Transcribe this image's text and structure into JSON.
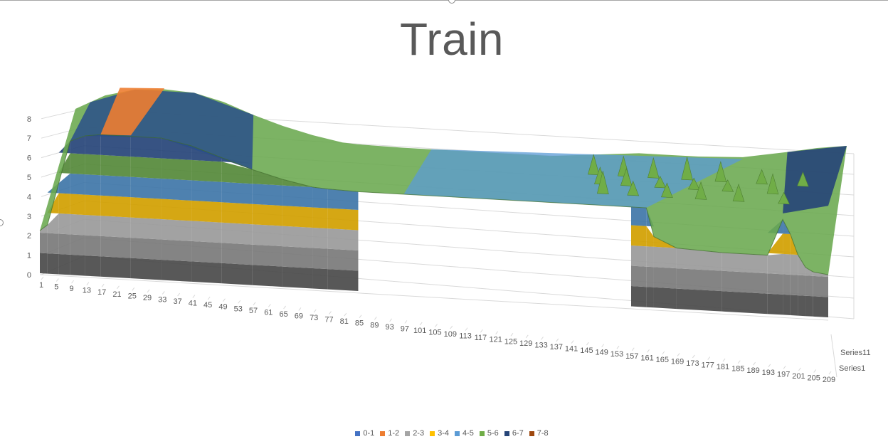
{
  "chart_data": {
    "type": "surface",
    "title": "Train",
    "z_axis": {
      "ticks": [
        "0",
        "1",
        "2",
        "3",
        "4",
        "5",
        "6",
        "7",
        "8"
      ],
      "range": [
        0,
        8
      ]
    },
    "x_axis": {
      "ticks": [
        "1",
        "5",
        "9",
        "13",
        "17",
        "21",
        "25",
        "29",
        "33",
        "37",
        "41",
        "45",
        "49",
        "53",
        "57",
        "61",
        "65",
        "69",
        "73",
        "77",
        "81",
        "85",
        "89",
        "93",
        "97",
        "101",
        "105",
        "109",
        "113",
        "117",
        "121",
        "125",
        "129",
        "133",
        "137",
        "141",
        "145",
        "149",
        "153",
        "157",
        "161",
        "165",
        "169",
        "173",
        "177",
        "181",
        "185",
        "189",
        "193",
        "197",
        "201",
        "205",
        "209"
      ]
    },
    "y_axis": {
      "ticks": [
        "Series1",
        "Series11"
      ]
    },
    "legend": {
      "position": "bottom",
      "entries": [
        {
          "label": "0-1",
          "color": "#4472c4"
        },
        {
          "label": "1-2",
          "color": "#ed7d31"
        },
        {
          "label": "2-3",
          "color": "#a5a5a5"
        },
        {
          "label": "3-4",
          "color": "#ffc000"
        },
        {
          "label": "4-5",
          "color": "#5b9bd5"
        },
        {
          "label": "5-6",
          "color": "#70ad47"
        },
        {
          "label": "6-7",
          "color": "#264478"
        },
        {
          "label": "7-8",
          "color": "#9e480e"
        }
      ]
    },
    "profile_front": {
      "x": [
        1,
        3,
        6,
        9,
        13,
        17,
        25,
        33,
        41,
        49,
        57,
        65,
        73,
        77,
        85,
        97,
        113,
        129,
        145,
        157,
        161,
        163,
        169,
        181,
        193,
        197,
        199,
        201,
        203,
        205,
        209
      ],
      "z": [
        2.1,
        2.4,
        4.5,
        6.6,
        6.9,
        7.0,
        7.0,
        7.0,
        6.7,
        6.2,
        5.7,
        5.3,
        5.0,
        4.95,
        4.9,
        4.9,
        4.9,
        4.9,
        4.9,
        4.9,
        4.9,
        3.5,
        3.0,
        2.9,
        2.9,
        4.7,
        4.0,
        3.0,
        2.4,
        2.2,
        2.1
      ]
    },
    "profile_back": {
      "x": [
        1,
        5,
        9,
        17,
        25,
        33,
        41,
        49,
        57,
        65,
        73,
        77,
        89,
        97,
        113,
        129,
        141,
        153,
        161,
        169,
        181,
        193,
        201,
        209
      ],
      "z": [
        6.0,
        6.4,
        6.8,
        7.2,
        7.3,
        7.2,
        6.8,
        6.2,
        5.7,
        5.3,
        5.0,
        4.95,
        4.9,
        4.9,
        4.9,
        4.9,
        5.1,
        5.3,
        5.3,
        5.3,
        5.4,
        5.8,
        6.1,
        6.3
      ]
    },
    "peaks": {
      "x": [
        143,
        146,
        148,
        151,
        153,
        156,
        159,
        162,
        165,
        168,
        171,
        174,
        177,
        180,
        184,
        188,
        192,
        196,
        199
      ],
      "z": [
        5.6,
        5.5,
        5.7,
        5.6,
        5.5,
        5.4,
        5.6,
        5.3,
        5.4,
        5.7,
        5.3,
        5.5,
        5.6,
        5.3,
        5.5,
        5.4,
        5.6,
        5.3,
        5.4
      ]
    },
    "grid": true
  }
}
